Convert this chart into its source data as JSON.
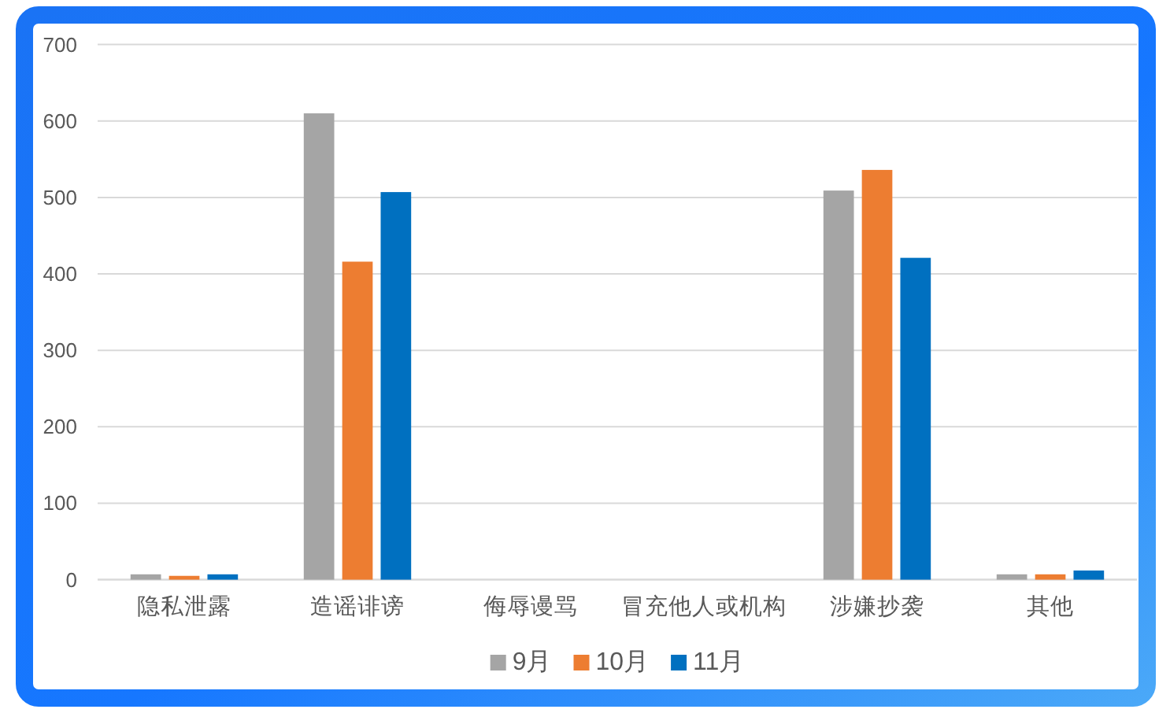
{
  "chart_data": {
    "type": "bar",
    "categories": [
      "隐私泄露",
      "造谣诽谤",
      "侮辱谩骂",
      "冒充他人或机构",
      "涉嫌抄袭",
      "其他"
    ],
    "series": [
      {
        "name": "9月",
        "color": "#a5a5a5",
        "values": [
          7,
          610,
          0,
          0,
          509,
          7
        ]
      },
      {
        "name": "10月",
        "color": "#ed7d31",
        "values": [
          5,
          416,
          0,
          0,
          536,
          7
        ]
      },
      {
        "name": "11月",
        "color": "#0070c0",
        "values": [
          7,
          507,
          0,
          0,
          421,
          12
        ]
      }
    ],
    "ylim": [
      0,
      700
    ],
    "yticks": [
      0,
      100,
      200,
      300,
      400,
      500,
      600,
      700
    ],
    "grid": "y",
    "legend": "bottom"
  }
}
